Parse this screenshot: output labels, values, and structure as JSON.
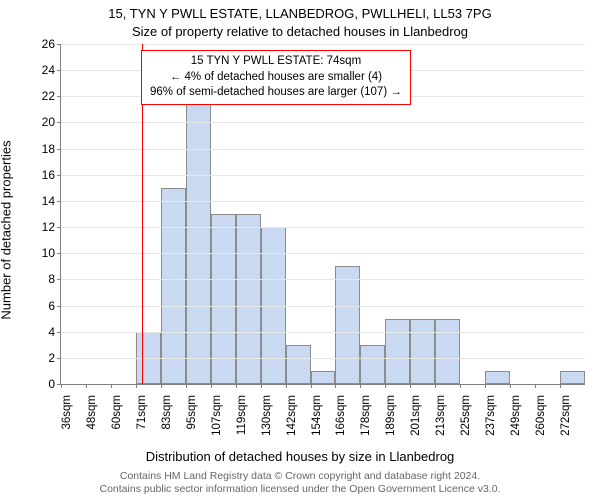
{
  "titles": {
    "line1": "15, TYN Y PWLL ESTATE, LLANBEDROG, PWLLHELI, LL53 7PG",
    "line2": "Size of property relative to detached houses in Llanbedrog"
  },
  "ylabel": "Number of detached properties",
  "xlabel": "Distribution of detached houses by size in Llanbedrog",
  "footer": {
    "line1": "Contains HM Land Registry data © Crown copyright and database right 2024.",
    "line2": "Contains public sector information licensed under the Open Government Licence v3.0."
  },
  "chart": {
    "type": "histogram",
    "y": {
      "min": 0,
      "max": 26,
      "step": 2
    },
    "x": {
      "ticks": [
        "36sqm",
        "48sqm",
        "60sqm",
        "71sqm",
        "83sqm",
        "95sqm",
        "107sqm",
        "119sqm",
        "130sqm",
        "142sqm",
        "154sqm",
        "166sqm",
        "178sqm",
        "189sqm",
        "201sqm",
        "213sqm",
        "225sqm",
        "237sqm",
        "249sqm",
        "260sqm",
        "272sqm"
      ]
    },
    "bars": [
      0,
      0,
      0,
      4,
      15,
      22,
      13,
      13,
      12,
      3,
      1,
      9,
      3,
      5,
      5,
      5,
      0,
      1,
      0,
      0,
      1
    ],
    "bar_fill": "#c9d9f2",
    "bar_stroke": "#8c8c8c",
    "grid_color": "#e6e6e6",
    "bg": "#ffffff"
  },
  "marker": {
    "position_index": 3.25,
    "color": "#ff0000",
    "width": 1
  },
  "callout": {
    "border_color": "#ff0000",
    "lines": [
      "15 TYN Y PWLL ESTATE: 74sqm",
      "← 4% of detached houses are smaller (4)",
      "96% of semi-detached houses are larger (107) →"
    ]
  }
}
